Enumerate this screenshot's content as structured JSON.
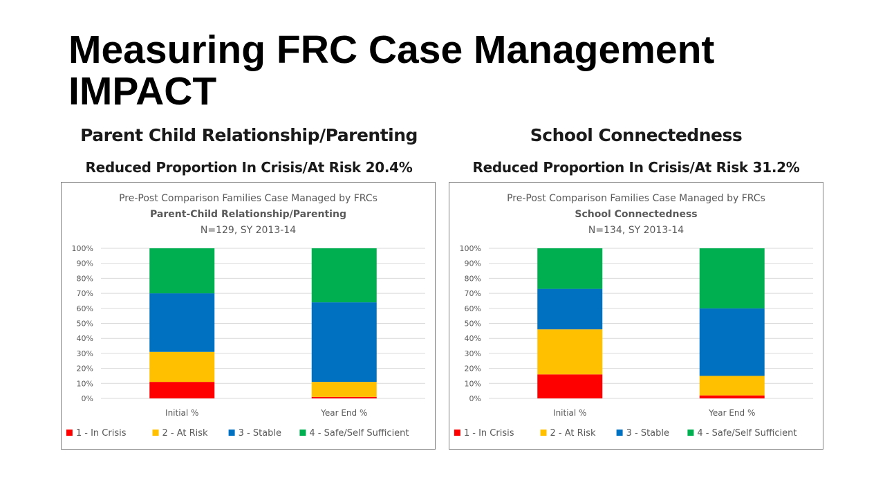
{
  "slide": {
    "title": "Measuring FRC Case Management IMPACT"
  },
  "columns": [
    {
      "heading": "Parent Child Relationship/Parenting",
      "subheading": "Reduced Proportion In Crisis/At Risk 20.4%"
    },
    {
      "heading": "School Connectedness",
      "subheading": "Reduced Proportion In Crisis/At Risk 31.2%"
    }
  ],
  "colors": {
    "1 - In Crisis": "#ff0000",
    "2 - At Risk": "#ffc000",
    "3 - Stable": "#0070c0",
    "4 - Safe/Self Sufficient": "#00b050"
  },
  "chart_data": [
    {
      "type": "bar",
      "stacked": true,
      "title": "Pre-Post Comparison Families Case Managed by FRCs",
      "subtitle": "Parent-Child Relationship/Parenting",
      "note": "N=129, SY 2013-14",
      "categories": [
        "Initial %",
        "Year End %"
      ],
      "yticks": [
        "0%",
        "10%",
        "20%",
        "30%",
        "40%",
        "50%",
        "60%",
        "70%",
        "80%",
        "90%",
        "100%"
      ],
      "ylim": [
        0,
        100
      ],
      "grid": true,
      "legend": "bottom",
      "series": [
        {
          "name": "1 - In Crisis",
          "values": [
            11,
            1
          ]
        },
        {
          "name": "2 - At Risk",
          "values": [
            20,
            10
          ]
        },
        {
          "name": "3 - Stable",
          "values": [
            39,
            53
          ]
        },
        {
          "name": "4 - Safe/Self Sufficient",
          "values": [
            30,
            36
          ]
        }
      ]
    },
    {
      "type": "bar",
      "stacked": true,
      "title": "Pre-Post Comparison Families Case Managed by FRCs",
      "subtitle": "School Connectedness",
      "note": "N=134, SY 2013-14",
      "categories": [
        "Initial %",
        "Year End %"
      ],
      "yticks": [
        "0%",
        "10%",
        "20%",
        "30%",
        "40%",
        "50%",
        "60%",
        "70%",
        "80%",
        "90%",
        "100%"
      ],
      "ylim": [
        0,
        100
      ],
      "grid": true,
      "legend": "bottom",
      "series": [
        {
          "name": "1 - In Crisis",
          "values": [
            16,
            2
          ]
        },
        {
          "name": "2 - At Risk",
          "values": [
            30,
            13
          ]
        },
        {
          "name": "3 - Stable",
          "values": [
            27,
            45
          ]
        },
        {
          "name": "4 - Safe/Self Sufficient",
          "values": [
            27,
            40
          ]
        }
      ]
    }
  ]
}
